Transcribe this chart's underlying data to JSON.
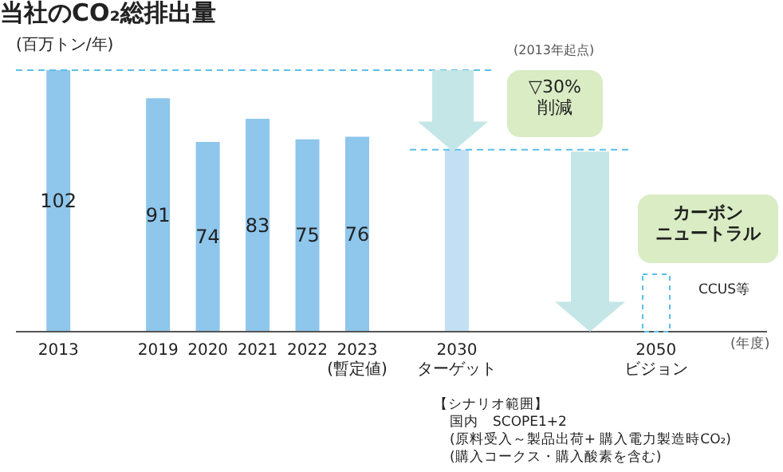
{
  "chart_data": {
    "type": "bar",
    "title": "当社のCO₂総排出量",
    "ylabel": "(百万トン/年)",
    "categories": [
      "2013",
      null,
      "2019",
      "2020",
      "2021",
      "2022",
      "2023\n(暫定値)",
      null,
      "2030\nターゲット",
      null,
      null,
      null,
      "2050\nビジョン"
    ],
    "values": [
      102,
      null,
      91,
      74,
      83,
      75,
      76,
      null,
      71,
      null,
      null,
      null,
      null
    ],
    "colors": [
      "#8ec6ec",
      null,
      "#8ec6ec",
      "#8ec6ec",
      "#8ec6ec",
      "#8ec6ec",
      "#8ec6ec",
      null,
      "#c3dff3",
      null,
      null,
      null,
      null
    ],
    "value_labels": [
      "102",
      null,
      "91",
      "74",
      "83",
      "75",
      "76",
      null,
      null,
      null,
      null,
      null,
      null
    ],
    "ref_lines": [
      {
        "axis": "y",
        "value": 102,
        "color": "#5bc0eb",
        "line_style": "dashed"
      },
      {
        "axis": "y",
        "value": 71,
        "color": "#5bc0eb",
        "line_style": "dashed"
      }
    ],
    "annotations": [
      "(2013年起点)",
      "▽30%\n削減",
      "カーボン",
      "ニュートラル",
      "CCUS等",
      "(年度)",
      "【シナリオ範囲】",
      "国内　SCOPE1+2",
      "(原料受入～製品出荷+ 購入電力製造時CO₂)",
      "(購入コークス・購入酸素を含む)"
    ],
    "grid": false
  }
}
